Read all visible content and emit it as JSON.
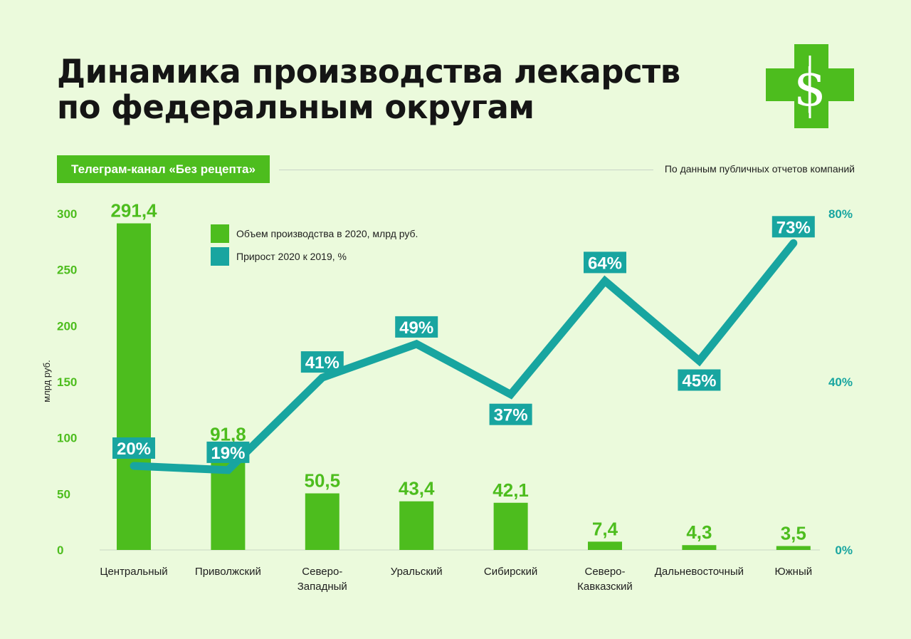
{
  "title_line1": "Динамика производства лекарств",
  "title_line2": "по федеральным округам",
  "logo_icon": "pharmacy-cross-dollar-icon",
  "source_badge": "Телеграм-канал «Без рецепта»",
  "source_note": "По данным публичных отчетов компаний",
  "colors": {
    "bar": "#4dbd1e",
    "line": "#18a5a0",
    "background": "#ebfadc"
  },
  "chart_data": {
    "type": "bar",
    "categories": [
      [
        "Центральный"
      ],
      [
        "Приволжский"
      ],
      [
        "Северо-",
        "Западный"
      ],
      [
        "Уральский"
      ],
      [
        "Сибирский"
      ],
      [
        "Северо-",
        "Кавказский"
      ],
      [
        "Дальневосточный"
      ],
      [
        "Южный"
      ]
    ],
    "ylabel_left": "млрд руб.",
    "left_ticks": [
      "0",
      "50",
      "100",
      "150",
      "200",
      "250",
      "300"
    ],
    "left_ylim": [
      0,
      300
    ],
    "right_ticks": [
      "0%",
      "40%",
      "80%"
    ],
    "right_ylim": [
      0,
      80
    ],
    "legend_position": "top-left",
    "series": [
      {
        "name": "Объем производства в 2020, млрд руб.",
        "type": "bar",
        "axis": "left",
        "values": [
          291.4,
          91.8,
          50.5,
          43.4,
          42.1,
          7.4,
          4.3,
          3.5
        ],
        "labels": [
          "291,4",
          "91,8",
          "50,5",
          "43,4",
          "42,1",
          "7,4",
          "4,3",
          "3,5"
        ]
      },
      {
        "name": "Прирост 2020 к 2019, %",
        "type": "line",
        "axis": "right",
        "values": [
          20,
          19,
          41,
          49,
          37,
          64,
          45,
          73
        ],
        "labels": [
          "20%",
          "19%",
          "41%",
          "49%",
          "37%",
          "64%",
          "45%",
          "73%"
        ]
      }
    ]
  }
}
